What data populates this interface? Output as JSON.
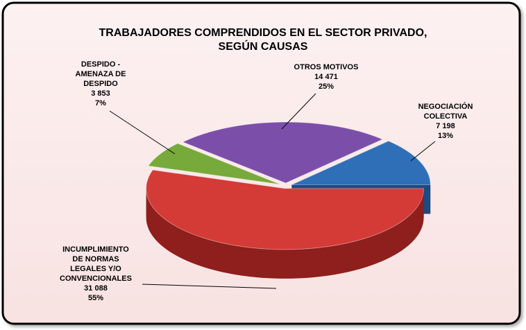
{
  "chart_data": {
    "type": "pie3d",
    "title": [
      "TRABAJADORES COMPRENDIDOS EN EL SECTOR PRIVADO,",
      "SEGÚN CAUSAS"
    ],
    "categories": [
      [
        "NEGOCIACIÓN",
        "COLECTIVA"
      ],
      [
        "OTROS MOTIVOS"
      ],
      [
        "DESPIDO -",
        "AMENAZA DE",
        "DESPIDO"
      ],
      [
        "INCUMPLIMIENTO",
        "DE NORMAS",
        "LEGALES Y/O",
        "CONVENCIONALES"
      ]
    ],
    "values": [
      7198,
      14471,
      3853,
      31088
    ],
    "value_labels": [
      "7 198",
      "14 471",
      "3 853",
      "31 088"
    ],
    "percentages": [
      13,
      25,
      7,
      55
    ],
    "percentage_labels": [
      "13%",
      "25%",
      "7%",
      "55%"
    ],
    "colors": [
      "#2f6fb8",
      "#7b4fa9",
      "#77a93b",
      "#d43a36"
    ],
    "side_colors": [
      "#1d4a80",
      "#523374",
      "#4f7526",
      "#8e1f1c"
    ]
  }
}
